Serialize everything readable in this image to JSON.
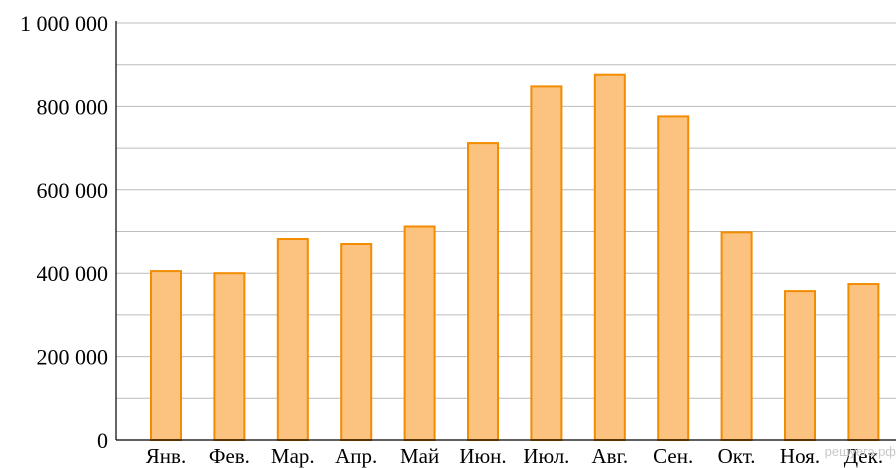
{
  "chart_data": {
    "type": "bar",
    "categories": [
      "Янв.",
      "Фев.",
      "Мар.",
      "Апр.",
      "Май",
      "Июн.",
      "Июл.",
      "Авг.",
      "Сен.",
      "Окт.",
      "Ноя.",
      "Дек."
    ],
    "values": [
      405000,
      400000,
      482000,
      470000,
      512000,
      712000,
      848000,
      876000,
      776000,
      498000,
      357000,
      374000
    ],
    "ylim": [
      0,
      1000000
    ],
    "yticks": [
      0,
      200000,
      400000,
      600000,
      800000,
      1000000
    ],
    "ytick_labels": [
      "0",
      "200 000",
      "400 000",
      "600 000",
      "800 000",
      "1 000 000"
    ],
    "minor_grid_step": 100000,
    "grid": true,
    "bar_fill": "#fcc27f",
    "bar_stroke": "#f28c00"
  },
  "watermark": "решуегэ.рф"
}
